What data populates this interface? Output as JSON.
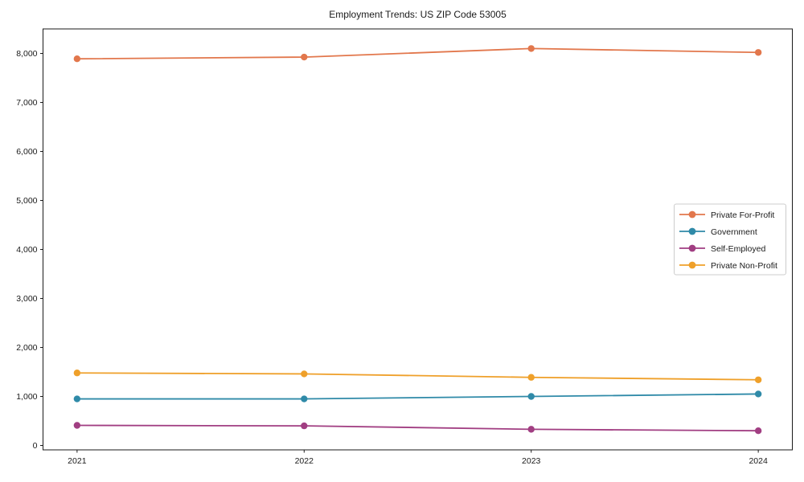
{
  "chart": {
    "title": "Employment Trends: US ZIP Code 53005"
  },
  "chart_data": {
    "type": "line",
    "title": "Employment Trends: US ZIP Code 53005",
    "categories": [
      "2021",
      "2022",
      "2023",
      "2024"
    ],
    "x_values": [
      2021,
      2022,
      2023,
      2024
    ],
    "series": [
      {
        "name": "Private For-Profit",
        "color": "#e2774c",
        "values": [
          7890,
          7925,
          8100,
          8020
        ]
      },
      {
        "name": "Government",
        "color": "#2f8aa8",
        "values": [
          950,
          950,
          1000,
          1050
        ]
      },
      {
        "name": "Self-Employed",
        "color": "#a13e82",
        "values": [
          410,
          400,
          330,
          300
        ]
      },
      {
        "name": "Private Non-Profit",
        "color": "#efa02a",
        "values": [
          1480,
          1460,
          1390,
          1340
        ]
      }
    ],
    "xlabel": "",
    "ylabel": "",
    "xlim": [
      2020.85,
      2024.15
    ],
    "ylim": [
      -90,
      8500
    ],
    "xticks": {
      "values": [
        2021,
        2022,
        2023,
        2024
      ],
      "labels": [
        "2021",
        "2022",
        "2023",
        "2024"
      ]
    },
    "yticks": {
      "values": [
        0,
        1000,
        2000,
        3000,
        4000,
        5000,
        6000,
        7000,
        8000
      ],
      "labels": [
        "0",
        "1,000",
        "2,000",
        "3,000",
        "4,000",
        "5,000",
        "6,000",
        "7,000",
        "8,000"
      ]
    },
    "grid": false,
    "legend": {
      "position": "center-right",
      "labels": [
        "Private For-Profit",
        "Government",
        "Self-Employed",
        "Private Non-Profit"
      ]
    },
    "style": {
      "axis_color": "#1a1a1a",
      "legend_border_color": "#cccccc",
      "legend_background": "#ffffff",
      "plot_background": "#ffffff"
    }
  }
}
